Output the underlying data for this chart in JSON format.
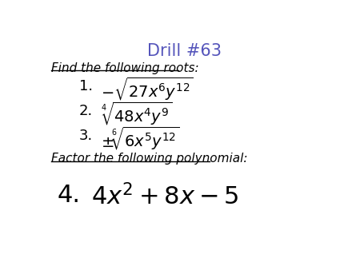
{
  "title": "Drill #63",
  "title_color": "#5555bb",
  "title_fontsize": 15,
  "background_color": "#ffffff",
  "heading1": "Find the following roots:",
  "heading1_fontsize": 11,
  "item1_label": "1.",
  "item1_expr": "$-\\sqrt{27x^{6}y^{12}}$",
  "item2_label": "2.",
  "item2_expr": "$\\sqrt[4]{48x^{4}y^{9}}$",
  "item3_label": "3.",
  "item3_expr": "$\\pm\\!\\sqrt[6]{6x^{5}y^{12}}$",
  "heading2": "Factor the following polynomial:",
  "heading2_fontsize": 11,
  "item4_label": "4.",
  "item4_expr": "$4x^{2}+8x-5$",
  "item_fontsize": 14,
  "item4_fontsize": 22,
  "label_fontsize": 13,
  "label4_fontsize": 22,
  "text_color": "#000000"
}
